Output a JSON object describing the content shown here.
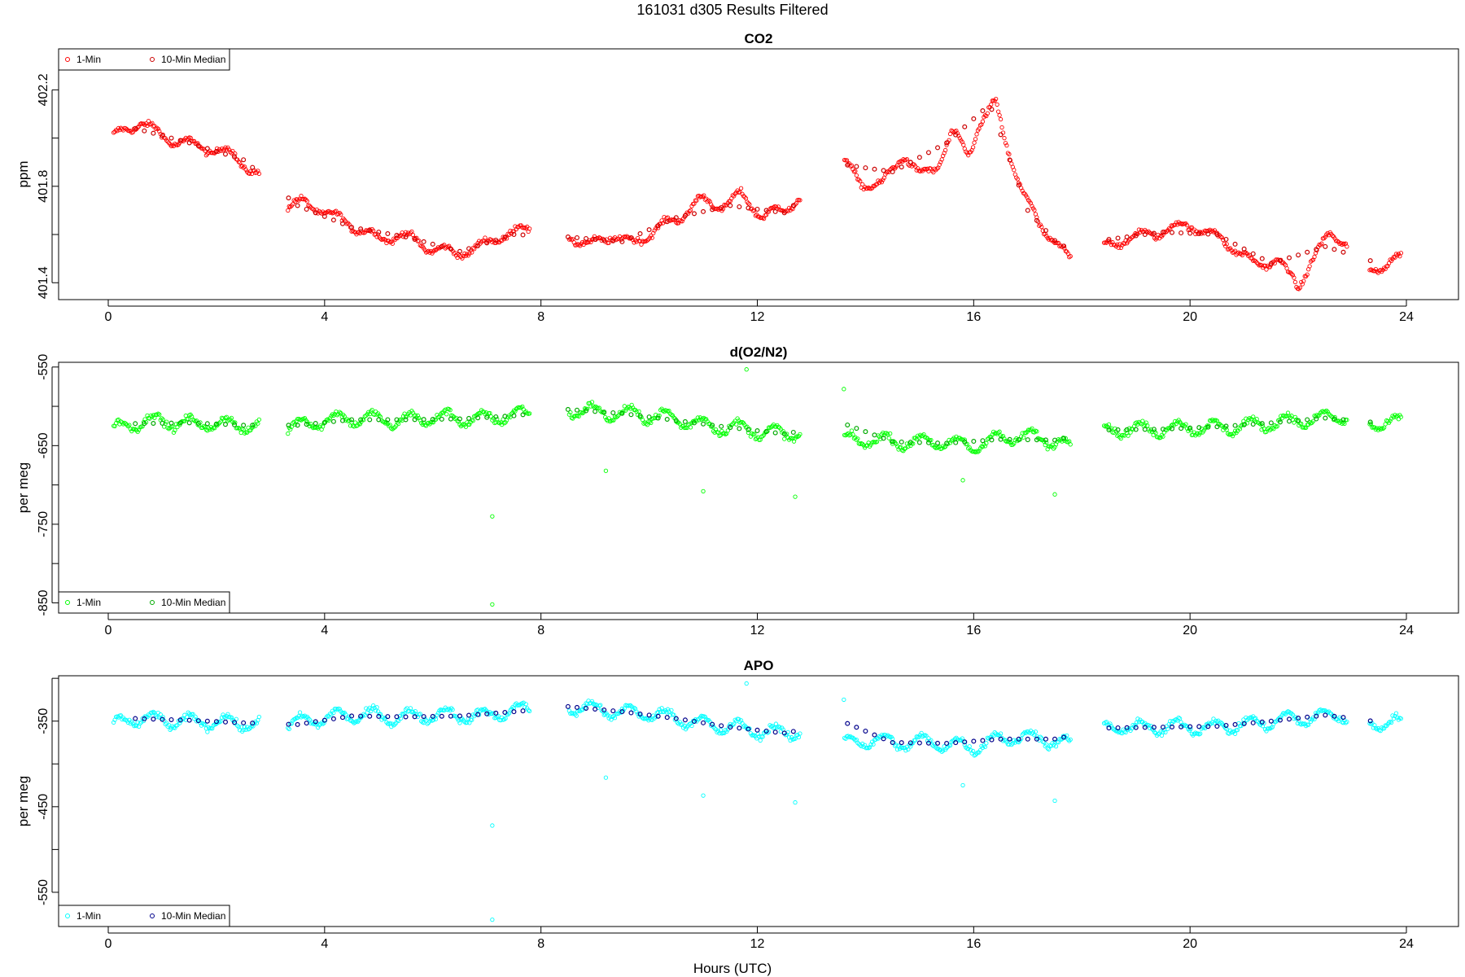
{
  "figure": {
    "title": "161031   d305   Results Filtered",
    "xlabel": "Hours (UTC)"
  },
  "chart_data": [
    {
      "type": "scatter",
      "title": "CO2",
      "xlabel": "",
      "ylabel": "ppm",
      "xlim": [
        0,
        24
      ],
      "ylim": [
        401.33,
        402.37
      ],
      "x_ticks": [
        0,
        4,
        8,
        12,
        16,
        20,
        24
      ],
      "y_ticks": [
        401.4,
        401.6,
        401.8,
        402.0,
        402.2
      ],
      "y_tick_labels": [
        "401.4",
        "",
        "401.8",
        "",
        "402.2"
      ],
      "legend": {
        "position": "top-left",
        "entries": [
          "1-Min",
          "10-Min Median"
        ]
      },
      "colors": {
        "one_min": "#ff0000",
        "median": "#cc0000"
      },
      "gaps": [
        [
          2.8,
          3.3
        ],
        [
          7.8,
          8.5
        ],
        [
          12.8,
          13.6
        ],
        [
          17.8,
          18.4
        ],
        [
          22.9,
          23.3
        ]
      ],
      "series": [
        {
          "name": "1-Min",
          "x": [
            0.1,
            0.3,
            0.6,
            0.9,
            1.2,
            1.6,
            2.0,
            2.3,
            2.7,
            3.3,
            3.6,
            3.9,
            4.2,
            4.6,
            5.0,
            5.4,
            5.9,
            6.4,
            6.9,
            7.3,
            7.7,
            8.5,
            8.9,
            9.3,
            9.7,
            10.1,
            10.5,
            10.9,
            11.3,
            11.7,
            12.1,
            12.5,
            12.8,
            13.6,
            13.9,
            14.3,
            14.7,
            15.0,
            15.3,
            15.6,
            15.9,
            16.1,
            16.4,
            16.6,
            16.9,
            17.2,
            17.5,
            17.8,
            18.4,
            18.8,
            19.2,
            19.6,
            20.0,
            20.4,
            20.8,
            21.2,
            21.6,
            22.0,
            22.2,
            22.6,
            22.9,
            23.3,
            23.6,
            23.9
          ],
          "y": [
            402.0,
            402.03,
            402.07,
            402.02,
            401.99,
            401.97,
            401.95,
            401.93,
            401.86,
            401.72,
            401.73,
            401.71,
            401.67,
            401.63,
            401.58,
            401.6,
            401.55,
            401.52,
            401.55,
            401.6,
            401.62,
            401.6,
            401.55,
            401.6,
            401.56,
            401.62,
            401.66,
            401.74,
            401.72,
            401.76,
            401.68,
            401.7,
            401.76,
            401.9,
            401.82,
            401.8,
            401.94,
            401.84,
            401.88,
            402.02,
            401.93,
            402.06,
            402.14,
            401.98,
            401.78,
            401.64,
            401.58,
            401.48,
            401.55,
            401.58,
            401.6,
            401.62,
            401.64,
            401.6,
            401.55,
            401.47,
            401.5,
            401.38,
            401.48,
            401.6,
            401.57,
            401.46,
            401.47,
            401.5
          ]
        },
        {
          "name": "10-Min Median",
          "x": [
            0.5,
            1.5,
            2.5,
            3.5,
            4.5,
            5.5,
            6.5,
            7.5,
            8.5,
            9.5,
            10.5,
            11.5,
            12.5,
            13.6,
            14.5,
            15.5,
            16.3,
            17.0,
            17.6,
            18.5,
            19.5,
            20.5,
            21.5,
            22.5,
            23.5
          ],
          "y": [
            402.04,
            401.98,
            401.91,
            401.72,
            401.63,
            401.59,
            401.53,
            401.6,
            401.59,
            401.57,
            401.67,
            401.72,
            401.69,
            401.89,
            401.86,
            401.98,
            402.14,
            401.7,
            401.55,
            401.58,
            401.61,
            401.6,
            401.48,
            401.55,
            401.48
          ]
        }
      ]
    },
    {
      "type": "scatter",
      "title": "d(O2/N2)",
      "xlabel": "",
      "ylabel": "per meg",
      "xlim": [
        0,
        24
      ],
      "ylim": [
        -863,
        -544
      ],
      "x_ticks": [
        0,
        4,
        8,
        12,
        16,
        20,
        24
      ],
      "y_ticks": [
        -850,
        -800,
        -750,
        -700,
        -650,
        -600,
        -550
      ],
      "y_tick_labels": [
        "-850",
        "",
        "-750",
        "",
        "-650",
        "",
        "-550"
      ],
      "legend": {
        "position": "bottom-left",
        "entries": [
          "1-Min",
          "10-Min Median"
        ]
      },
      "colors": {
        "one_min": "#00ff00",
        "median": "#00aa00"
      },
      "gaps": [
        [
          2.8,
          3.3
        ],
        [
          7.8,
          8.5
        ],
        [
          12.8,
          13.6
        ],
        [
          17.8,
          18.4
        ],
        [
          22.9,
          23.3
        ]
      ],
      "outliers": {
        "x": [
          7.1,
          7.1,
          9.2,
          11.0,
          11.8,
          12.7,
          13.6,
          15.8,
          17.5
        ],
        "y": [
          -740,
          -852,
          -682,
          -708,
          -553,
          -715,
          -578,
          -694,
          -712
        ]
      },
      "series": [
        {
          "name": "1-Min",
          "x": [
            0.1,
            0.4,
            0.8,
            1.2,
            1.6,
            2.0,
            2.4,
            2.7,
            3.3,
            3.7,
            4.1,
            4.5,
            4.9,
            5.3,
            5.7,
            6.1,
            6.5,
            6.9,
            7.3,
            7.7,
            8.5,
            8.9,
            9.3,
            9.7,
            10.1,
            10.5,
            10.9,
            11.3,
            11.7,
            12.1,
            12.5,
            12.8,
            13.6,
            14.0,
            14.4,
            14.8,
            15.2,
            15.6,
            16.0,
            16.4,
            16.8,
            17.2,
            17.6,
            17.8,
            18.4,
            18.8,
            19.2,
            19.6,
            20.0,
            20.4,
            20.8,
            21.2,
            21.6,
            22.0,
            22.4,
            22.8,
            23.3,
            23.6,
            23.9
          ],
          "y": [
            -630,
            -622,
            -618,
            -620,
            -623,
            -621,
            -625,
            -624,
            -628,
            -621,
            -617,
            -615,
            -616,
            -619,
            -616,
            -614,
            -615,
            -617,
            -612,
            -610,
            -604,
            -606,
            -609,
            -610,
            -612,
            -616,
            -622,
            -626,
            -628,
            -632,
            -636,
            -632,
            -645,
            -642,
            -644,
            -646,
            -644,
            -648,
            -650,
            -642,
            -638,
            -640,
            -645,
            -652,
            -632,
            -628,
            -630,
            -628,
            -626,
            -628,
            -626,
            -624,
            -620,
            -618,
            -616,
            -612,
            -620,
            -622,
            -622
          ]
        },
        {
          "name": "10-Min Median",
          "x": [
            0.5,
            1.5,
            2.5,
            3.5,
            4.5,
            5.5,
            6.5,
            7.5,
            8.5,
            9.5,
            10.5,
            11.5,
            12.5,
            13.6,
            14.5,
            15.5,
            16.5,
            17.5,
            18.5,
            19.5,
            20.5,
            21.5,
            22.5,
            23.5
          ],
          "y": [
            -622,
            -621,
            -624,
            -624,
            -617,
            -617,
            -616,
            -612,
            -604,
            -609,
            -618,
            -627,
            -635,
            -622,
            -645,
            -647,
            -642,
            -643,
            -630,
            -629,
            -626,
            -621,
            -615,
            -621
          ]
        }
      ]
    },
    {
      "type": "scatter",
      "title": "APO",
      "xlabel": "Hours (UTC)",
      "ylabel": "per meg",
      "xlim": [
        0,
        24
      ],
      "ylim": [
        -590,
        -297
      ],
      "x_ticks": [
        0,
        4,
        8,
        12,
        16,
        20,
        24
      ],
      "y_ticks": [
        -550,
        -500,
        -450,
        -400,
        -350,
        -300
      ],
      "y_tick_labels": [
        "-550",
        "",
        "-450",
        "",
        "-350",
        ""
      ],
      "legend": {
        "position": "bottom-left",
        "entries": [
          "1-Min",
          "10-Min Median"
        ]
      },
      "colors": {
        "one_min": "#00ffff",
        "median": "#00008b"
      },
      "gaps": [
        [
          2.8,
          3.3
        ],
        [
          7.8,
          8.5
        ],
        [
          12.8,
          13.6
        ],
        [
          17.8,
          18.4
        ],
        [
          22.9,
          23.3
        ]
      ],
      "outliers": {
        "x": [
          7.1,
          7.1,
          9.2,
          11.0,
          11.8,
          12.7,
          13.6,
          15.8,
          17.5
        ],
        "y": [
          -472,
          -582,
          -416,
          -437,
          -306,
          -445,
          -325,
          -425,
          -443
        ]
      },
      "series": [
        {
          "name": "1-Min",
          "x": [
            0.1,
            0.4,
            0.8,
            1.2,
            1.6,
            2.0,
            2.4,
            2.7,
            3.3,
            3.7,
            4.1,
            4.5,
            4.9,
            5.3,
            5.7,
            6.1,
            6.5,
            6.9,
            7.3,
            7.7,
            8.5,
            8.9,
            9.3,
            9.7,
            10.1,
            10.5,
            10.9,
            11.3,
            11.7,
            12.1,
            12.5,
            12.8,
            13.6,
            14.0,
            14.4,
            14.8,
            15.2,
            15.6,
            16.0,
            16.4,
            16.8,
            17.2,
            17.6,
            17.8,
            18.4,
            18.8,
            19.2,
            19.6,
            20.0,
            20.4,
            20.8,
            21.2,
            21.6,
            22.0,
            22.4,
            22.8,
            23.3,
            23.6,
            23.9
          ],
          "y": [
            -355,
            -347,
            -348,
            -350,
            -351,
            -350,
            -353,
            -352,
            -356,
            -349,
            -345,
            -343,
            -343,
            -346,
            -344,
            -342,
            -343,
            -345,
            -339,
            -337,
            -333,
            -335,
            -339,
            -340,
            -342,
            -346,
            -352,
            -356,
            -358,
            -362,
            -364,
            -362,
            -376,
            -372,
            -374,
            -376,
            -374,
            -378,
            -380,
            -372,
            -368,
            -370,
            -374,
            -380,
            -360,
            -356,
            -358,
            -357,
            -356,
            -357,
            -355,
            -353,
            -349,
            -347,
            -345,
            -342,
            -350,
            -353,
            -352
          ]
        },
        {
          "name": "10-Min Median",
          "x": [
            0.5,
            1.5,
            2.5,
            3.5,
            4.5,
            5.5,
            6.5,
            7.5,
            8.5,
            9.5,
            10.5,
            11.5,
            12.5,
            13.6,
            14.5,
            15.5,
            16.5,
            17.5,
            18.5,
            19.5,
            20.5,
            21.5,
            22.5,
            23.5
          ],
          "y": [
            -347,
            -349,
            -352,
            -354,
            -344,
            -345,
            -344,
            -339,
            -333,
            -339,
            -347,
            -357,
            -364,
            -351,
            -375,
            -376,
            -371,
            -371,
            -358,
            -357,
            -356,
            -350,
            -343,
            -351
          ]
        }
      ]
    }
  ]
}
